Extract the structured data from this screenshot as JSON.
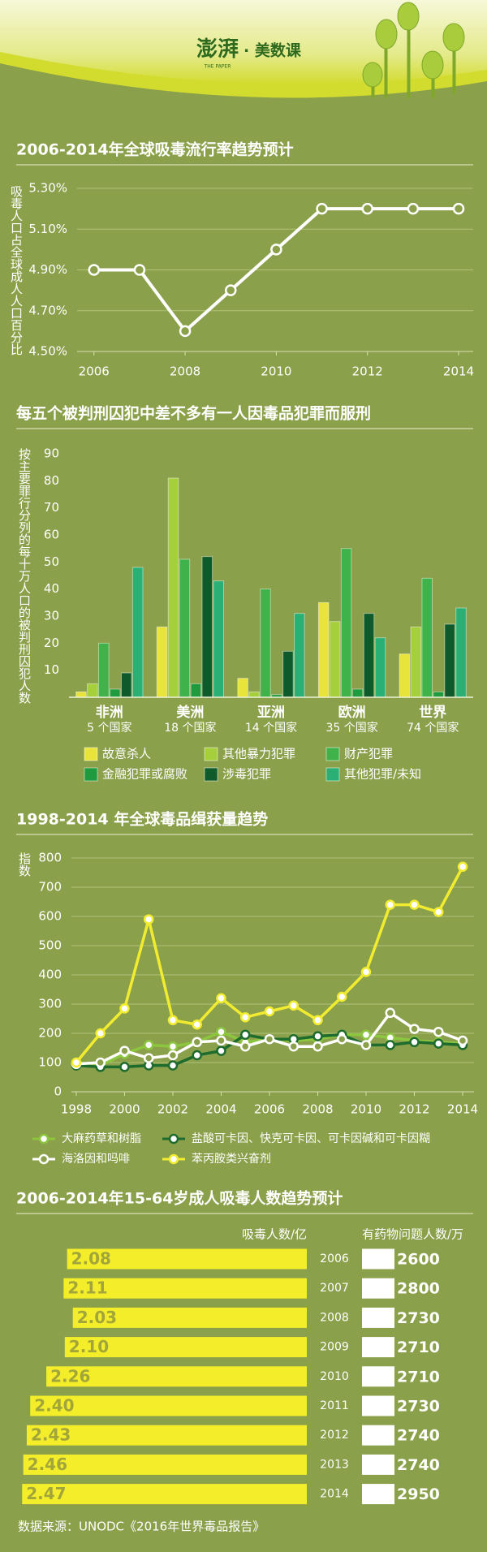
{
  "header": {
    "logo": "澎湃",
    "brand": "· 美数课",
    "tagline": "THE PAPER"
  },
  "chart_data": [
    {
      "type": "line",
      "title": "2006-2014年全球吸毒流行率趋势预计",
      "ylabel": "吸毒人口占全球成人人口百分比",
      "x": [
        2006,
        2007,
        2008,
        2009,
        2010,
        2011,
        2012,
        2013,
        2014
      ],
      "series": [
        {
          "color": "#ffffff",
          "values": [
            4.9,
            4.9,
            4.6,
            4.8,
            5.0,
            5.2,
            5.2,
            5.2,
            5.2
          ]
        }
      ],
      "xlim": [
        2005.63,
        2014.32
      ],
      "xticks": [
        2006,
        2008,
        2010,
        2012,
        2014
      ],
      "ylim": [
        4.5,
        5.3
      ],
      "yticks": [
        {
          "value": 4.5,
          "label": "4.50%"
        },
        {
          "value": 4.7,
          "label": "4.70%"
        },
        {
          "value": 4.9,
          "label": "4.90%"
        },
        {
          "value": 5.1,
          "label": "5.10%"
        },
        {
          "value": 5.3,
          "label": "5.30%"
        }
      ],
      "grid": true
    },
    {
      "type": "bar",
      "title": "每五个被判刑囚犯中差不多有一人因毒品犯罪而服刑",
      "ylabel": "按主要罪行分列的每十万人口的被判刑囚犯人数",
      "categories": [
        "非洲",
        "美洲",
        "亚洲",
        "欧洲",
        "世界"
      ],
      "subcategories": [
        "5 个国家",
        "18 个国家",
        "14 个国家",
        "35 个国家",
        "74 个国家"
      ],
      "series": [
        {
          "name": "故意杀人",
          "color": "#e8e43a",
          "values": [
            2,
            26,
            7,
            35,
            16
          ]
        },
        {
          "name": "其他暴力犯罪",
          "color": "#a6cf3c",
          "values": [
            5,
            81,
            2,
            28,
            26
          ]
        },
        {
          "name": "财产犯罪",
          "color": "#3fb24a",
          "values": [
            20,
            51,
            40,
            55,
            44
          ]
        },
        {
          "name": "金融犯罪或腐败",
          "color": "#1f9a3e",
          "values": [
            3,
            5,
            1,
            3,
            2
          ]
        },
        {
          "name": "涉毒犯罪",
          "color": "#0e5a2a",
          "values": [
            9,
            52,
            17,
            31,
            27
          ]
        },
        {
          "name": "其他犯罪/未知",
          "color": "#2ab074",
          "values": [
            48,
            43,
            31,
            22,
            33
          ]
        }
      ],
      "ylim": [
        0,
        90
      ],
      "yticks": [
        10,
        20,
        30,
        40,
        50,
        60,
        70,
        80,
        90
      ],
      "grid": false,
      "legend": "bottom"
    },
    {
      "type": "line",
      "title": "1998-2014 年全球毒品缉获量趋势",
      "ylabel": "指数",
      "x": [
        1998,
        1999,
        2000,
        2001,
        2002,
        2003,
        2004,
        2005,
        2006,
        2007,
        2008,
        2009,
        2010,
        2011,
        2012,
        2013,
        2014
      ],
      "series": [
        {
          "name": "大麻药草和树脂",
          "color": "#8cc63f",
          "values": [
            100,
            90,
            130,
            160,
            155,
            170,
            205,
            170,
            180,
            175,
            180,
            195,
            195,
            185,
            175,
            170,
            165
          ]
        },
        {
          "name": "盐酸可卡因、快克可卡因、可卡因碱和可卡因糊",
          "color": "#1e6b2e",
          "values": [
            90,
            85,
            85,
            90,
            90,
            125,
            140,
            195,
            180,
            180,
            190,
            195,
            160,
            160,
            170,
            165,
            160
          ]
        },
        {
          "name": "海洛因和吗啡",
          "color": "#ffffff",
          "values": [
            95,
            100,
            140,
            115,
            125,
            170,
            175,
            155,
            180,
            155,
            155,
            180,
            160,
            270,
            215,
            205,
            175
          ]
        },
        {
          "name": "苯丙胺类兴奋剂",
          "color": "#f2ec30",
          "values": [
            100,
            200,
            285,
            590,
            245,
            230,
            320,
            255,
            275,
            295,
            245,
            325,
            410,
            640,
            640,
            615,
            770
          ]
        }
      ],
      "xlim": [
        1997.8,
        2014.47
      ],
      "xticks": [
        1998,
        2000,
        2002,
        2004,
        2006,
        2008,
        2010,
        2012,
        2014
      ],
      "ylim": [
        0,
        800
      ],
      "yticks": [
        0,
        100,
        200,
        300,
        400,
        500,
        600,
        700,
        800
      ],
      "grid": true,
      "legend": "bottom"
    },
    {
      "type": "hbar",
      "title": "2006-2014年15-64岁成人吸毒人数趋势预计",
      "categories": [
        "2006",
        "2007",
        "2008",
        "2009",
        "2010",
        "2011",
        "2012",
        "2013",
        "2014"
      ],
      "series": [
        {
          "name": "吸毒人数/亿",
          "color": "#f4ee2a",
          "values": [
            2.08,
            2.11,
            2.03,
            2.1,
            2.26,
            2.4,
            2.43,
            2.46,
            2.47
          ],
          "value_labels": [
            "2.08",
            "2.11",
            "2.03",
            "2.10",
            "2.26",
            "2.40",
            "2.43",
            "2.46",
            "2.47"
          ]
        },
        {
          "name": "有药物问题人数/万",
          "color": "#ffffff",
          "values": [
            2600,
            2800,
            2730,
            2710,
            2710,
            2730,
            2740,
            2740,
            2950
          ]
        }
      ]
    }
  ],
  "source": "数据来源：UNODC《2016年世界毒品报告》"
}
